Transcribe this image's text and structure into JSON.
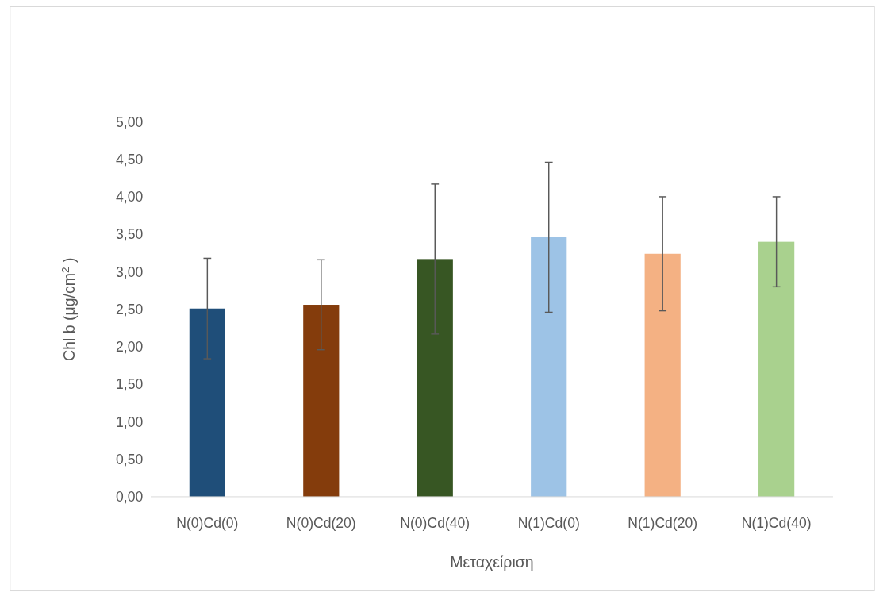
{
  "chart_data": {
    "type": "bar",
    "xlabel": "Μεταχείριση",
    "ylabel": "Chl b (μg/cm$^{2}$ )",
    "categories": [
      "N(0)Cd(0)",
      "N(0)Cd(20)",
      "N(0)Cd(40)",
      "N(1)Cd(0)",
      "N(1)Cd(20)",
      "N(1)Cd(40)"
    ],
    "values": [
      2.51,
      2.56,
      3.17,
      3.46,
      3.24,
      3.4
    ],
    "colors": [
      "#1f4e79",
      "#843c0c",
      "#375623",
      "#9dc3e6",
      "#f4b183",
      "#a9d18e"
    ],
    "errors": [
      0.67,
      0.6,
      1.0,
      1.0,
      0.76,
      0.6
    ],
    "ylim": [
      0,
      5
    ],
    "yticks": [
      {
        "value": 0,
        "label": "0,00"
      },
      {
        "value": 0.5,
        "label": "0,50"
      },
      {
        "value": 1,
        "label": "1,00"
      },
      {
        "value": 1.5,
        "label": "1,50"
      },
      {
        "value": 2,
        "label": "2,00"
      },
      {
        "value": 2.5,
        "label": "2,50"
      },
      {
        "value": 3,
        "label": "3,00"
      },
      {
        "value": 3.5,
        "label": "3,50"
      },
      {
        "value": 4,
        "label": "4,00"
      },
      {
        "value": 4.5,
        "label": "4,50"
      },
      {
        "value": 5,
        "label": "5,00"
      }
    ],
    "grid": false
  }
}
